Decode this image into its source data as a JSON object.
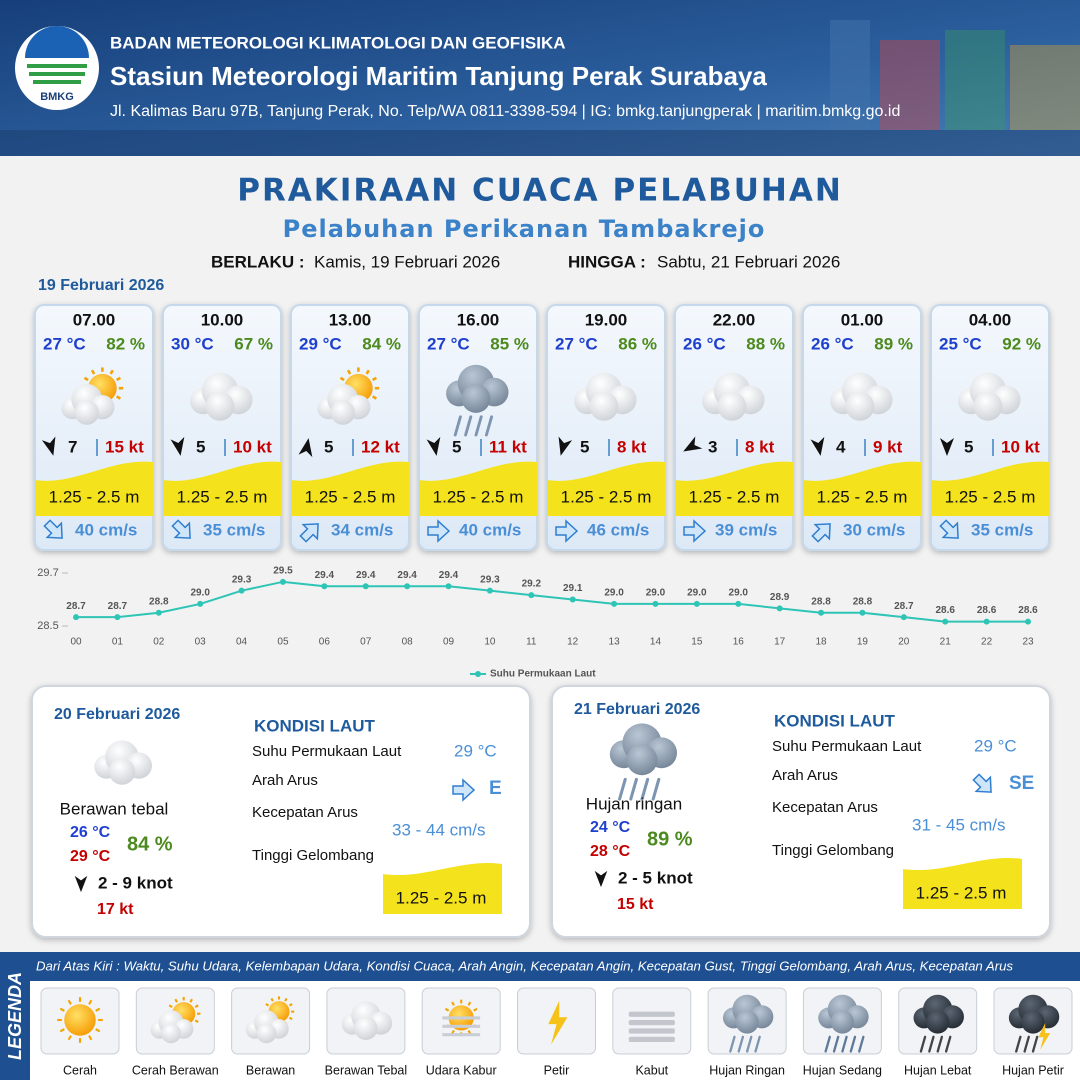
{
  "header": {
    "logo": "BMKG",
    "org": "BADAN METEOROLOGI KLIMATOLOGI DAN GEOFISIKA",
    "station": "Stasiun Meteorologi Maritim Tanjung Perak Surabaya",
    "address": "Jl. Kalimas Baru 97B, Tanjung Perak, No. Telp/WA 0811-3398-594 | IG: bmkg.tanjungperak | maritim.bmkg.go.id"
  },
  "title": "PRAKIRAAN CUACA PELABUHAN",
  "subtitle": "Pelabuhan Perikanan Tambakrejo",
  "validity": {
    "from_label": "BERLAKU :",
    "from": "Kamis, 19 Februari 2026",
    "to_label": "HINGGA :",
    "to": "Sabtu, 21 Februari 2026"
  },
  "day1_date": "19 Februari 2026",
  "forecasts": [
    {
      "time": "07.00",
      "temp": "27 °C",
      "humidity": "82 %",
      "wind": "7",
      "gust": "15 kt",
      "wave": "1.25 - 2.5 m",
      "current": "40 cm/s"
    },
    {
      "time": "10.00",
      "temp": "30 °C",
      "humidity": "67 %",
      "wind": "5",
      "gust": "10 kt",
      "wave": "1.25 - 2.5 m",
      "current": "35 cm/s"
    },
    {
      "time": "13.00",
      "temp": "29 °C",
      "humidity": "84 %",
      "wind": "5",
      "gust": "12 kt",
      "wave": "1.25 - 2.5 m",
      "current": "34 cm/s"
    },
    {
      "time": "16.00",
      "temp": "27 °C",
      "humidity": "85 %",
      "wind": "5",
      "gust": "11 kt",
      "wave": "1.25 - 2.5 m",
      "current": "40 cm/s"
    },
    {
      "time": "19.00",
      "temp": "27 °C",
      "humidity": "86 %",
      "wind": "5",
      "gust": "8 kt",
      "wave": "1.25 - 2.5 m",
      "current": "46 cm/s"
    },
    {
      "time": "22.00",
      "temp": "26 °C",
      "humidity": "88 %",
      "wind": "3",
      "gust": "8 kt",
      "wave": "1.25 - 2.5 m",
      "current": "39 cm/s"
    },
    {
      "time": "01.00",
      "temp": "26 °C",
      "humidity": "89 %",
      "wind": "4",
      "gust": "9 kt",
      "wave": "1.25 - 2.5 m",
      "current": "30 cm/s"
    },
    {
      "time": "04.00",
      "temp": "25 °C",
      "humidity": "92 %",
      "wind": "5",
      "gust": "10 kt",
      "wave": "1.25 - 2.5 m",
      "current": "35 cm/s"
    }
  ],
  "sst_chart": {
    "type": "line",
    "categories": [
      "00",
      "01",
      "02",
      "03",
      "04",
      "05",
      "06",
      "07",
      "08",
      "09",
      "10",
      "11",
      "12",
      "13",
      "14",
      "15",
      "16",
      "17",
      "18",
      "19",
      "20",
      "21",
      "22",
      "23"
    ],
    "series": [
      {
        "name": "Suhu Permukaan Laut",
        "color": "#2ec4b6",
        "values": [
          28.7,
          28.7,
          28.8,
          29.0,
          29.3,
          29.5,
          29.4,
          29.4,
          29.4,
          29.4,
          29.3,
          29.2,
          29.1,
          29.0,
          29.0,
          29.0,
          29.0,
          28.9,
          28.8,
          28.8,
          28.7,
          28.6,
          28.6,
          28.6
        ],
        "value_labels": [
          "28.7",
          "28.7",
          "28.8",
          "29.0",
          "29.3",
          "29.5",
          "29.4",
          "29.4",
          "29.4",
          "29.4",
          "29.3",
          "29.2",
          "29.1",
          "29.0",
          "29.0",
          "29.0",
          "29.0",
          "28.9",
          "28.8",
          "28.8",
          "28.7",
          "28.6",
          "28.6",
          "28.6"
        ]
      }
    ],
    "ylim": [
      28.5,
      29.7
    ],
    "yticks": [
      28.5,
      29.7
    ]
  },
  "days": [
    {
      "date": "20 Februari 2026",
      "condition": "Berawan tebal",
      "temp_min": "26 °C",
      "temp_max": "29 °C",
      "humidity": "84 %",
      "wind": "2  - 9 knot",
      "gust": "17 kt",
      "sea_title": "KONDISI LAUT",
      "labels": [
        "Suhu Permukaan Laut",
        "Arah Arus",
        "Kecepatan Arus",
        "Tinggi Gelombang"
      ],
      "sst": "29 °C",
      "current_dir": "E",
      "current_speed": "33  - 44 cm/s",
      "wave": "1.25 - 2.5 m"
    },
    {
      "date": "21 Februari 2026",
      "condition": "Hujan ringan",
      "temp_min": "24 °C",
      "temp_max": "28 °C",
      "humidity": "89 %",
      "wind": "2  - 5 knot",
      "gust": "15 kt",
      "sea_title": "KONDISI LAUT",
      "labels": [
        "Suhu Permukaan Laut",
        "Arah Arus",
        "Kecepatan Arus",
        "Tinggi Gelombang"
      ],
      "sst": "29 °C",
      "current_dir": "SE",
      "current_speed": "31 - 45 cm/s",
      "wave": "1.25 - 2.5 m"
    }
  ],
  "legend": {
    "title": "LEGENDA",
    "description": "Dari Atas Kiri : Waktu, Suhu Udara, Kelembapan Udara, Kondisi Cuaca, Arah Angin, Kecepatan Angin, Kecepatan Gust, Tinggi Gelombang, Arah Arus, Kecepatan Arus",
    "items": [
      "Cerah",
      "Cerah Berawan",
      "Berawan",
      "Berawan Tebal",
      "Udara Kabur",
      "Petir",
      "Kabut",
      "Hujan Ringan",
      "Hujan Sedang",
      "Hujan Lebat",
      "Hujan Petir"
    ]
  }
}
